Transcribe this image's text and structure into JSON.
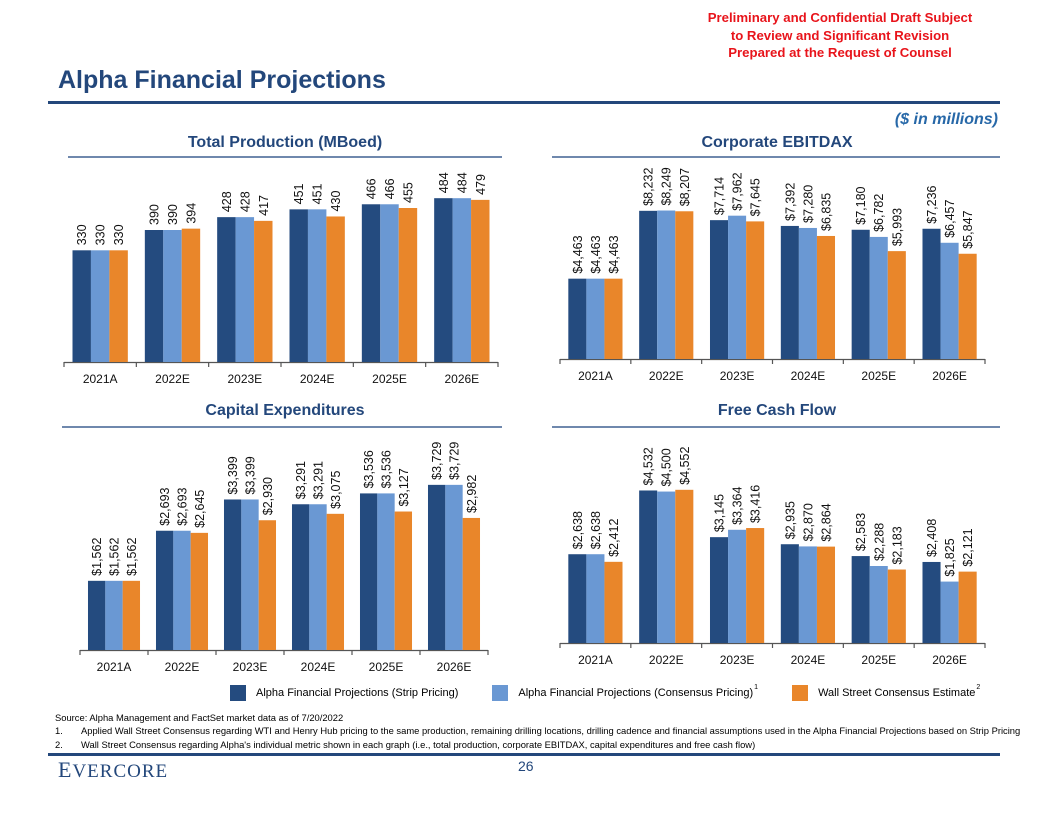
{
  "confidential_notice": [
    "Preliminary and Confidential Draft Subject",
    "to Review and Significant Revision",
    "Prepared at the Request of Counsel"
  ],
  "page_title": "Alpha Financial Projections",
  "units_note": "($ in millions)",
  "colors": {
    "strip": "#244b7f",
    "consensus": "#6a98d3",
    "wallstreet": "#e9862a",
    "title": "#23477b",
    "confidential": "#e8141b"
  },
  "legend": {
    "items": [
      {
        "label": "Alpha Financial Projections (Strip Pricing)",
        "footnote": ""
      },
      {
        "label": "Alpha Financial Projections (Consensus Pricing)",
        "footnote": "1"
      },
      {
        "label": "Wall Street Consensus Estimate",
        "footnote": "2"
      }
    ]
  },
  "notes": {
    "source": "Source: Alpha Management and FactSet market data as of 7/20/2022",
    "footnotes": [
      {
        "num": "1.",
        "text": "Applied Wall Street Consensus regarding WTI and Henry Hub pricing to the same production, remaining drilling locations, drilling cadence and financial assumptions used in the Alpha Financial Projections based on Strip Pricing"
      },
      {
        "num": "2.",
        "text": "Wall Street Consensus regarding Alpha's individual metric shown in each graph (i.e., total production, corporate EBITDAX, capital expenditures and free cash flow)"
      }
    ]
  },
  "footer": {
    "logo": "Evercore",
    "page_number": "26"
  },
  "chart_data": [
    {
      "type": "bar",
      "title": "Total Production (MBoed)",
      "categories": [
        "2021A",
        "2022E",
        "2023E",
        "2024E",
        "2025E",
        "2026E"
      ],
      "prefix": "",
      "ylim": [
        0,
        520
      ],
      "series": [
        {
          "name": "Alpha Financial Projections (Strip Pricing)",
          "values": [
            330,
            390,
            428,
            451,
            466,
            484
          ]
        },
        {
          "name": "Alpha Financial Projections (Consensus Pricing)",
          "values": [
            330,
            390,
            428,
            451,
            466,
            484
          ]
        },
        {
          "name": "Wall Street Consensus Estimate",
          "values": [
            330,
            394,
            417,
            430,
            455,
            479
          ]
        }
      ]
    },
    {
      "type": "bar",
      "title": "Corporate EBITDAX",
      "categories": [
        "2021A",
        "2022E",
        "2023E",
        "2024E",
        "2025E",
        "2026E"
      ],
      "prefix": "$",
      "ylim": [
        0,
        9000
      ],
      "series": [
        {
          "name": "Alpha Financial Projections (Strip Pricing)",
          "values": [
            4463,
            8232,
            7714,
            7392,
            7180,
            7236
          ]
        },
        {
          "name": "Alpha Financial Projections (Consensus Pricing)",
          "values": [
            4463,
            8249,
            7962,
            7280,
            6782,
            6457
          ]
        },
        {
          "name": "Wall Street Consensus Estimate",
          "values": [
            4463,
            8207,
            7645,
            6835,
            5993,
            5847
          ]
        }
      ]
    },
    {
      "type": "bar",
      "title": "Capital Expenditures",
      "categories": [
        "2021A",
        "2022E",
        "2023E",
        "2024E",
        "2025E",
        "2026E"
      ],
      "prefix": "$",
      "ylim": [
        0,
        4200
      ],
      "series": [
        {
          "name": "Alpha Financial Projections (Strip Pricing)",
          "values": [
            1562,
            2693,
            3399,
            3291,
            3536,
            3729
          ]
        },
        {
          "name": "Alpha Financial Projections (Consensus Pricing)",
          "values": [
            1562,
            2693,
            3399,
            3291,
            3536,
            3729
          ]
        },
        {
          "name": "Wall Street Consensus Estimate",
          "values": [
            1562,
            2645,
            2930,
            3075,
            3127,
            2982
          ]
        }
      ]
    },
    {
      "type": "bar",
      "title": "Free Cash Flow",
      "categories": [
        "2021A",
        "2022E",
        "2023E",
        "2024E",
        "2025E",
        "2026E"
      ],
      "prefix": "$",
      "ylim": [
        0,
        5200
      ],
      "series": [
        {
          "name": "Alpha Financial Projections (Strip Pricing)",
          "values": [
            2638,
            4532,
            3145,
            2935,
            2583,
            2408
          ]
        },
        {
          "name": "Alpha Financial Projections (Consensus Pricing)",
          "values": [
            2638,
            4500,
            3364,
            2870,
            2288,
            1825
          ]
        },
        {
          "name": "Wall Street Consensus Estimate",
          "values": [
            2412,
            4552,
            3416,
            2864,
            2183,
            2121
          ]
        }
      ]
    }
  ]
}
